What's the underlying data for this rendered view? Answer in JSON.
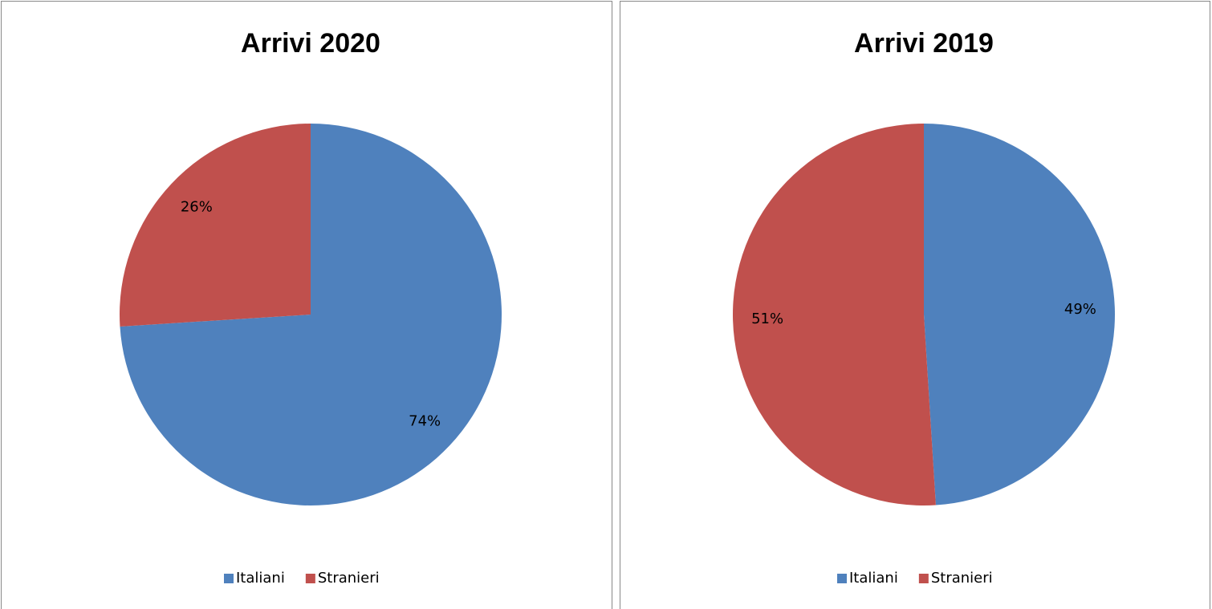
{
  "chart_data": [
    {
      "type": "pie",
      "title": "Arrivi 2020",
      "categories": [
        "Italiani",
        "Stranieri"
      ],
      "values": [
        74,
        26
      ],
      "value_labels": [
        "74%",
        "26%"
      ],
      "colors": [
        "#4f81bd",
        "#c0504d"
      ],
      "legend": "bottom"
    },
    {
      "type": "pie",
      "title": "Arrivi 2019",
      "categories": [
        "Italiani",
        "Stranieri"
      ],
      "values": [
        49,
        51
      ],
      "value_labels": [
        "49%",
        "51%"
      ],
      "colors": [
        "#4f81bd",
        "#c0504d"
      ],
      "legend": "bottom"
    }
  ]
}
